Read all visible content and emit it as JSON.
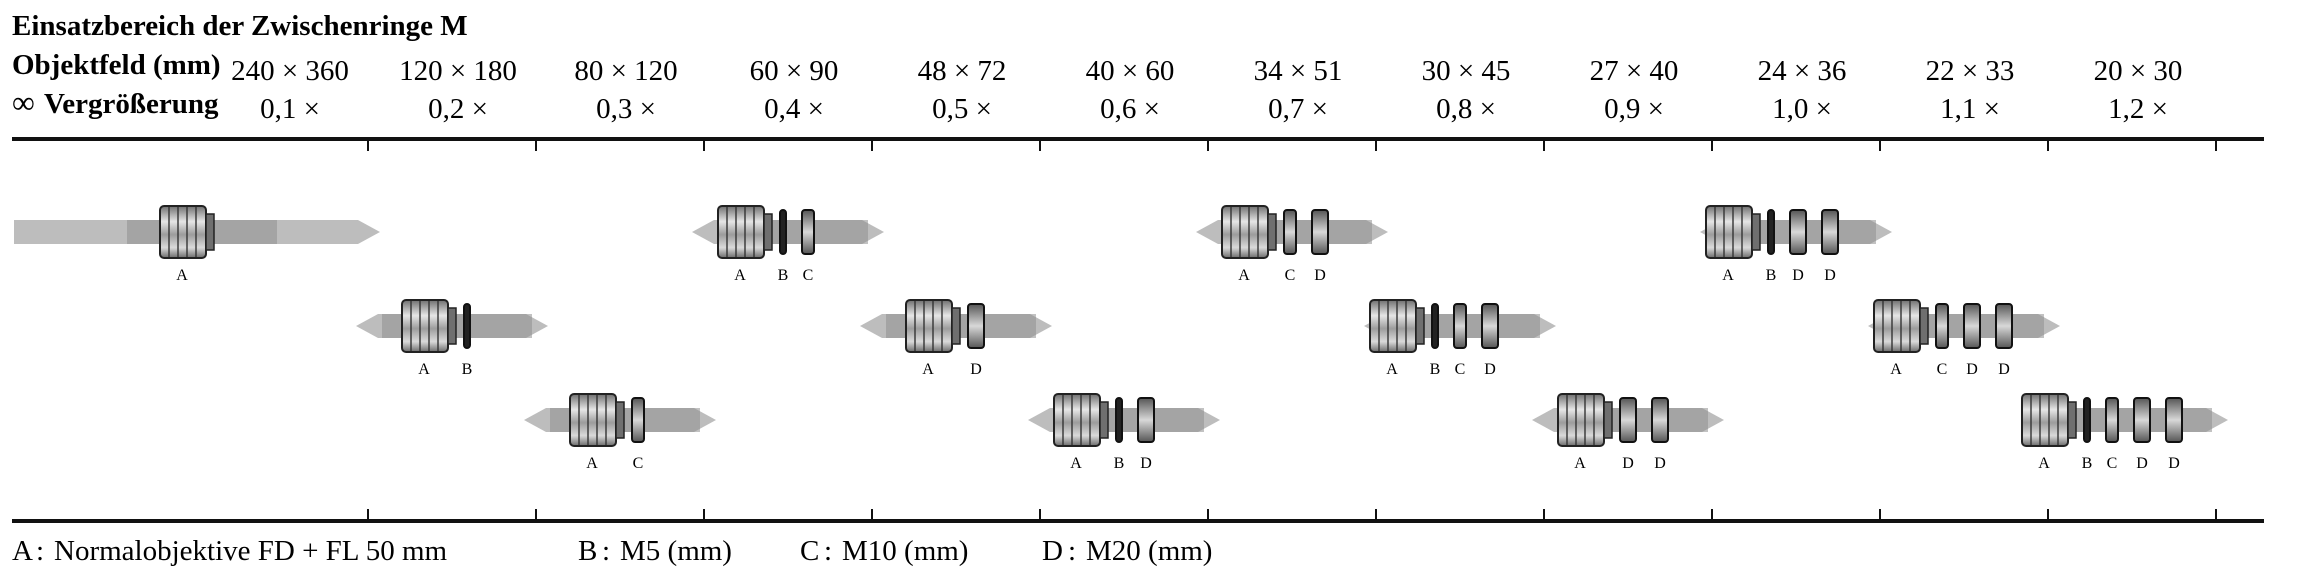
{
  "title": "Einsatzbereich der Zwischenringe M",
  "row_labels": {
    "field": "Objektfeld (mm)",
    "magnification_symbol": "∞",
    "magnification": "Vergrößerung"
  },
  "columns": [
    {
      "field": "240 × 360",
      "mag": "0,1 ×"
    },
    {
      "field": "120 × 180",
      "mag": "0,2 ×"
    },
    {
      "field": "80 × 120",
      "mag": "0,3 ×"
    },
    {
      "field": "60 × 90",
      "mag": "0,4 ×"
    },
    {
      "field": "48 × 72",
      "mag": "0,5 ×"
    },
    {
      "field": "40 × 60",
      "mag": "0,6 ×"
    },
    {
      "field": "34 × 51",
      "mag": "0,7 ×"
    },
    {
      "field": "30 × 45",
      "mag": "0,8 ×"
    },
    {
      "field": "27 × 40",
      "mag": "0,9 ×"
    },
    {
      "field": "24 × 36",
      "mag": "1,0 ×"
    },
    {
      "field": "22 × 33",
      "mag": "1,1 ×"
    },
    {
      "field": "20 × 30",
      "mag": "1,2 ×"
    }
  ],
  "combinations": [
    {
      "labels": [
        "A"
      ],
      "range": [
        0.0,
        0.1
      ]
    },
    {
      "labels": [
        "A",
        "B"
      ],
      "range": [
        0.1,
        0.2
      ]
    },
    {
      "labels": [
        "A",
        "C"
      ],
      "range": [
        0.2,
        0.3
      ]
    },
    {
      "labels": [
        "A",
        "B",
        "C"
      ],
      "range": [
        0.3,
        0.4
      ]
    },
    {
      "labels": [
        "A",
        "D"
      ],
      "range": [
        0.4,
        0.5
      ]
    },
    {
      "labels": [
        "A",
        "B",
        "D"
      ],
      "range": [
        0.5,
        0.6
      ]
    },
    {
      "labels": [
        "A",
        "C",
        "D"
      ],
      "range": [
        0.6,
        0.7
      ]
    },
    {
      "labels": [
        "A",
        "B",
        "C",
        "D"
      ],
      "range": [
        0.7,
        0.8
      ]
    },
    {
      "labels": [
        "A",
        "D",
        "D"
      ],
      "range": [
        0.8,
        0.9
      ]
    },
    {
      "labels": [
        "A",
        "B",
        "D",
        "D"
      ],
      "range": [
        0.9,
        1.0
      ]
    },
    {
      "labels": [
        "A",
        "C",
        "D",
        "D"
      ],
      "range": [
        1.0,
        1.1
      ]
    },
    {
      "labels": [
        "A",
        "B",
        "C",
        "D",
        "D"
      ],
      "range": [
        1.1,
        1.2
      ]
    }
  ],
  "legend": [
    {
      "key": "A",
      "text": "Normalobjektive FD + FL 50 mm"
    },
    {
      "key": "B",
      "text": "M5 (mm)"
    },
    {
      "key": "C",
      "text": "M10 (mm)"
    },
    {
      "key": "D",
      "text": "M20 (mm)"
    }
  ],
  "colors": {
    "ink": "#111111",
    "band": "#bdbdbd",
    "band_dark": "#8f8f8f",
    "lens": "#9a9a9a"
  }
}
